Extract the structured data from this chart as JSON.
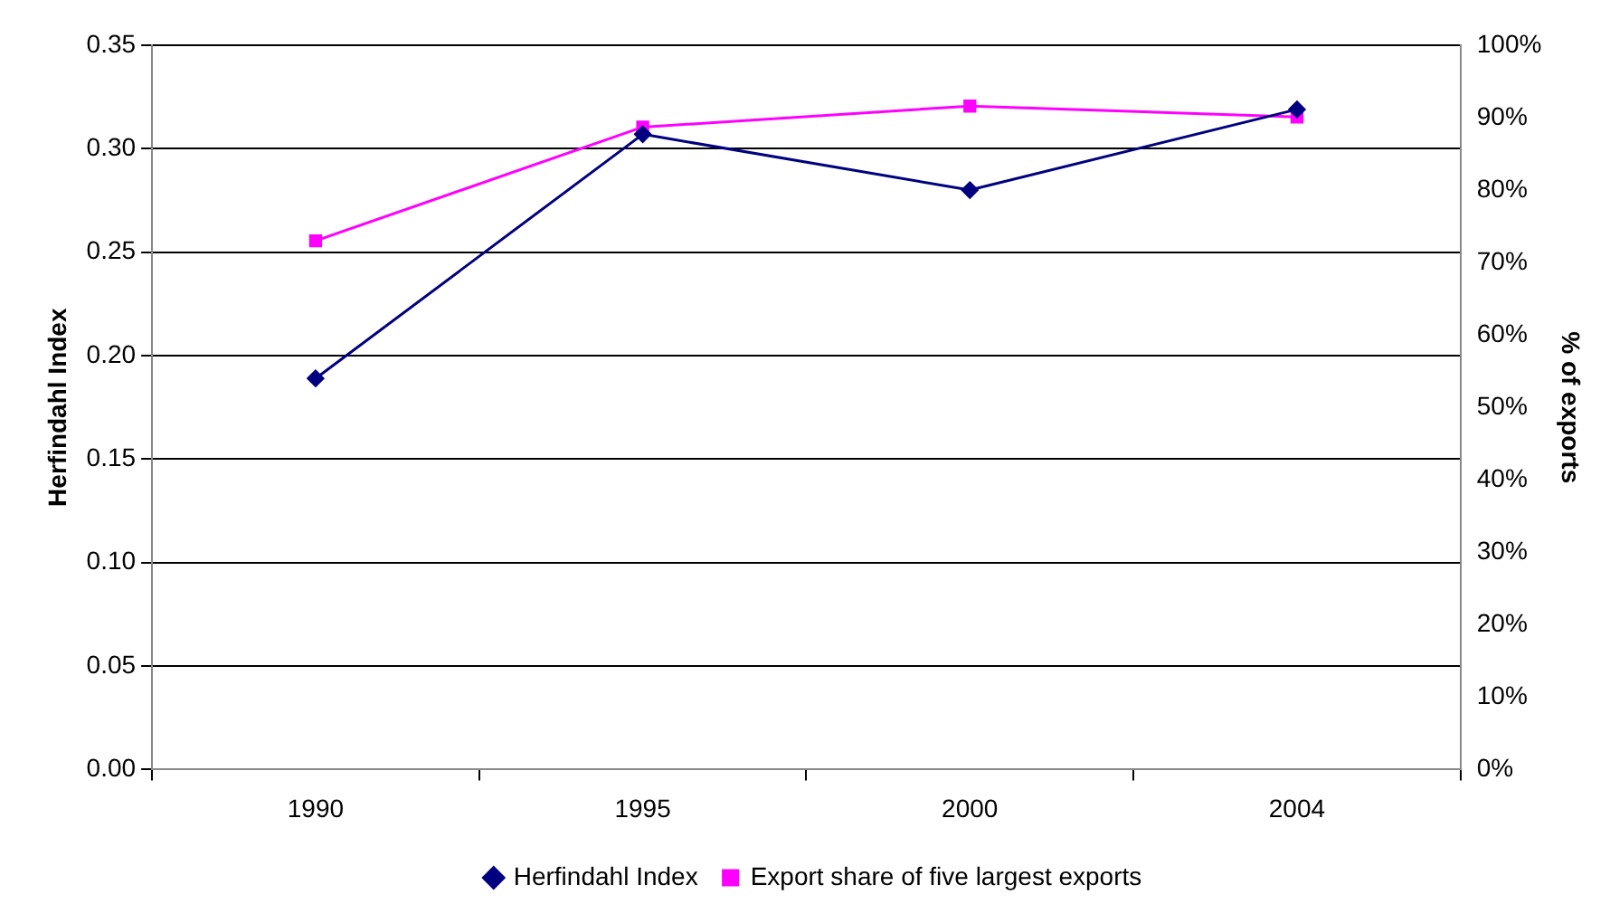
{
  "chart_data": {
    "type": "line",
    "ylabel": "Herfindahl Index",
    "y2label": "% of exports",
    "categories": [
      "1990",
      "1995",
      "2000",
      "2004"
    ],
    "series": [
      {
        "name": "Herfindahl Index",
        "color": "#000080",
        "values": [
          0.189,
          0.307,
          0.28,
          0.319
        ],
        "marker": "diamond"
      },
      {
        "name": "Export share of five largest exports",
        "color": "#ff00ff",
        "values": [
          73,
          88.7,
          91.6,
          90.1
        ],
        "axis": "y2",
        "marker": "square"
      }
    ],
    "ylim": [
      0,
      0.35
    ],
    "yticks": [
      {
        "value": 0,
        "label": "0.00"
      },
      {
        "value": 0.05,
        "label": "0.05"
      },
      {
        "value": 0.1,
        "label": "0.10"
      },
      {
        "value": 0.15,
        "label": "0.15"
      },
      {
        "value": 0.2,
        "label": "0.20"
      },
      {
        "value": 0.25,
        "label": "0.25"
      },
      {
        "value": 0.3,
        "label": "0.30"
      },
      {
        "value": 0.35,
        "label": "0.35"
      }
    ],
    "y2lim": [
      0,
      100
    ],
    "y2ticks": [
      {
        "value": 0,
        "label": "0%"
      },
      {
        "value": 10,
        "label": "10%"
      },
      {
        "value": 20,
        "label": "20%"
      },
      {
        "value": 30,
        "label": "30%"
      },
      {
        "value": 40,
        "label": "40%"
      },
      {
        "value": 50,
        "label": "50%"
      },
      {
        "value": 60,
        "label": "60%"
      },
      {
        "value": 70,
        "label": "70%"
      },
      {
        "value": 80,
        "label": "80%"
      },
      {
        "value": 90,
        "label": "90%"
      },
      {
        "value": 100,
        "label": "100%"
      }
    ],
    "grid": "y",
    "legend": "bottom",
    "line_style": "solid"
  }
}
